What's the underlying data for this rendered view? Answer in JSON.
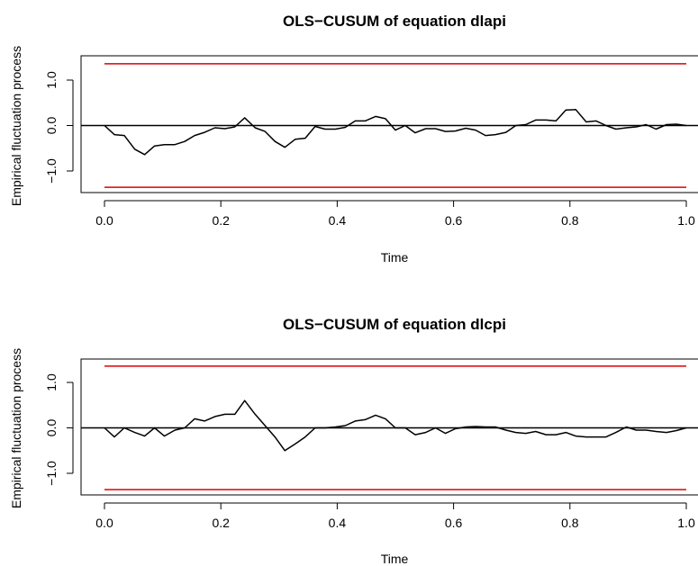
{
  "chart_data": [
    {
      "type": "line",
      "title": "OLS−CUSUM of equation dlapi",
      "xlabel": "Time",
      "ylabel": "Empirical fluctuation process",
      "xlim": [
        0,
        1
      ],
      "ylim": [
        -1.5,
        1.5
      ],
      "xticks": [
        0.0,
        0.2,
        0.4,
        0.6,
        0.8,
        1.0
      ],
      "xtick_labels": [
        "0.0",
        "0.2",
        "0.4",
        "0.6",
        "0.8",
        "1.0"
      ],
      "yticks": [
        -1.0,
        0.0,
        1.0
      ],
      "ytick_labels": [
        "−1.0",
        "0.0",
        "1.0"
      ],
      "reference_line": 0,
      "boundaries": [
        1.36,
        -1.36
      ],
      "colors": {
        "series": "#000000",
        "boundary": "#dd0000",
        "reference": "#000000"
      },
      "series": [
        {
          "x": [
            0.0,
            0.017,
            0.034,
            0.052,
            0.069,
            0.086,
            0.103,
            0.121,
            0.138,
            0.155,
            0.172,
            0.19,
            0.207,
            0.224,
            0.241,
            0.259,
            0.276,
            0.293,
            0.31,
            0.328,
            0.345,
            0.362,
            0.379,
            0.397,
            0.414,
            0.431,
            0.448,
            0.466,
            0.483,
            0.5,
            0.517,
            0.534,
            0.552,
            0.569,
            0.586,
            0.603,
            0.621,
            0.638,
            0.655,
            0.672,
            0.69,
            0.707,
            0.724,
            0.741,
            0.759,
            0.776,
            0.793,
            0.81,
            0.828,
            0.845,
            0.862,
            0.879,
            0.897,
            0.914,
            0.931,
            0.948,
            0.966,
            0.983,
            1.0
          ],
          "values": [
            0.0,
            -0.2,
            -0.22,
            -0.52,
            -0.64,
            -0.45,
            -0.42,
            -0.42,
            -0.35,
            -0.22,
            -0.15,
            -0.05,
            -0.07,
            -0.03,
            0.17,
            -0.05,
            -0.13,
            -0.35,
            -0.48,
            -0.3,
            -0.28,
            -0.02,
            -0.08,
            -0.08,
            -0.04,
            0.1,
            0.1,
            0.2,
            0.15,
            -0.1,
            0.0,
            -0.16,
            -0.07,
            -0.07,
            -0.13,
            -0.12,
            -0.06,
            -0.1,
            -0.22,
            -0.2,
            -0.15,
            0.0,
            0.02,
            0.12,
            0.12,
            0.1,
            0.34,
            0.35,
            0.08,
            0.1,
            0.0,
            -0.08,
            -0.05,
            -0.03,
            0.02,
            -0.08,
            0.02,
            0.03,
            0.0
          ]
        }
      ]
    },
    {
      "type": "line",
      "title": "OLS−CUSUM of equation dlcpi",
      "xlabel": "Time",
      "ylabel": "Empirical fluctuation process",
      "xlim": [
        0,
        1
      ],
      "ylim": [
        -1.5,
        1.5
      ],
      "xticks": [
        0.0,
        0.2,
        0.4,
        0.6,
        0.8,
        1.0
      ],
      "xtick_labels": [
        "0.0",
        "0.2",
        "0.4",
        "0.6",
        "0.8",
        "1.0"
      ],
      "yticks": [
        -1.0,
        0.0,
        1.0
      ],
      "ytick_labels": [
        "−1.0",
        "0.0",
        "1.0"
      ],
      "reference_line": 0,
      "boundaries": [
        1.36,
        -1.36
      ],
      "colors": {
        "series": "#000000",
        "boundary": "#dd0000",
        "reference": "#000000"
      },
      "series": [
        {
          "x": [
            0.0,
            0.017,
            0.034,
            0.052,
            0.069,
            0.086,
            0.103,
            0.121,
            0.138,
            0.155,
            0.172,
            0.19,
            0.207,
            0.224,
            0.241,
            0.259,
            0.276,
            0.293,
            0.31,
            0.328,
            0.345,
            0.362,
            0.379,
            0.397,
            0.414,
            0.431,
            0.448,
            0.466,
            0.483,
            0.5,
            0.517,
            0.534,
            0.552,
            0.569,
            0.586,
            0.603,
            0.621,
            0.638,
            0.655,
            0.672,
            0.69,
            0.707,
            0.724,
            0.741,
            0.759,
            0.776,
            0.793,
            0.81,
            0.828,
            0.845,
            0.862,
            0.879,
            0.897,
            0.914,
            0.931,
            0.948,
            0.966,
            0.983,
            1.0
          ],
          "values": [
            0.0,
            -0.2,
            0.0,
            -0.1,
            -0.18,
            0.0,
            -0.18,
            -0.05,
            0.0,
            0.2,
            0.15,
            0.25,
            0.3,
            0.3,
            0.6,
            0.3,
            0.05,
            -0.2,
            -0.5,
            -0.35,
            -0.2,
            0.0,
            0.0,
            0.02,
            0.05,
            0.15,
            0.18,
            0.28,
            0.2,
            0.0,
            0.0,
            -0.15,
            -0.1,
            0.0,
            -0.12,
            -0.02,
            0.02,
            0.03,
            0.02,
            0.02,
            -0.05,
            -0.1,
            -0.12,
            -0.08,
            -0.15,
            -0.15,
            -0.1,
            -0.18,
            -0.2,
            -0.2,
            -0.2,
            -0.1,
            0.02,
            -0.05,
            -0.05,
            -0.08,
            -0.1,
            -0.06,
            0.0
          ]
        }
      ]
    }
  ]
}
